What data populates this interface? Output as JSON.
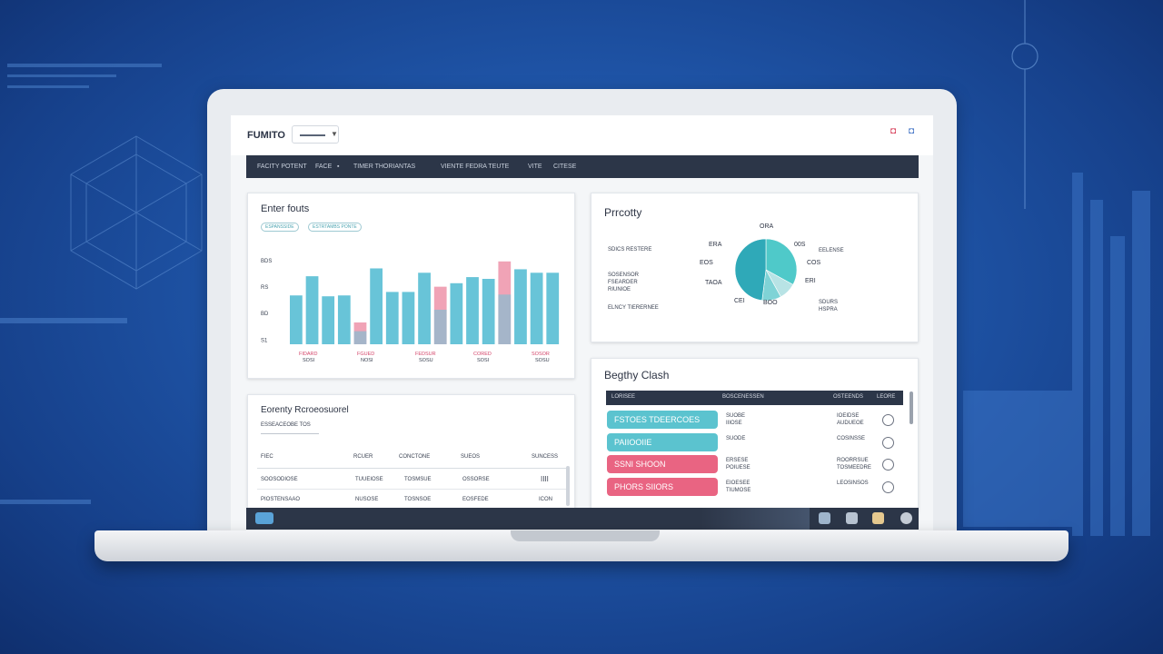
{
  "header": {
    "brand": "FUMITO"
  },
  "nav": {
    "items": [
      "FACITY POTENT",
      "FACE",
      "TIMER THORIANTAS",
      "VIENTE FEDRA TEUTE",
      "VITE",
      "CITESE"
    ]
  },
  "bar_card": {
    "title": "Enter fouts",
    "pills": [
      "ESPANSSIDE",
      "ESTRTAMBS PONTE"
    ],
    "y_ticks": [
      "BDS",
      "RS",
      "BD",
      "S1"
    ],
    "x_labels": [
      [
        "FIDARD",
        "SOSI"
      ],
      [
        "FGUED",
        "NOSI"
      ],
      [
        "FEDSUR",
        "SOSU"
      ],
      [
        "CORED",
        "SOSI"
      ],
      [
        "SOSOR",
        "SOSU"
      ]
    ],
    "bars": [
      0.56,
      0.78,
      0.55,
      0.56,
      0.25,
      0.87,
      0.6,
      0.6,
      0.82,
      0.66,
      0.7,
      0.77,
      0.75,
      0.95,
      0.86,
      0.82,
      0.82
    ],
    "highlight_bars": [
      4,
      9,
      13
    ],
    "colors": {
      "bar": "#68c4d8",
      "highlight": "#f0a3b6"
    }
  },
  "property_card": {
    "title": "Prrcotty",
    "left_labels": [
      "SDICS\nRESTERE",
      "SOSENSOR\nFSEARDER\nRIUNIOE",
      "ELNCY TIERERNEE"
    ],
    "pie_labels": [
      "ORA",
      "ERA",
      "00S",
      "EOS",
      "COS",
      "TAOA",
      "ERI",
      "CEI",
      "BOO"
    ],
    "right_labels": [
      "EELENSE",
      "SDURS\nHSPRA"
    ],
    "pie_slices": [
      0.33,
      0.09,
      0.1,
      0.48
    ],
    "pie_colors": [
      "#4fc9c9",
      "#b8e3e5",
      "#7fd3d6",
      "#2fa9b8"
    ]
  },
  "records_card": {
    "title": "Eorenty Rcroeosuorel",
    "subtitle": "ESSEACEOBE TOS",
    "columns": [
      "FIEC",
      "RCUER",
      "CONCTONE",
      "SUEOS",
      "SUNCESS"
    ],
    "rows": [
      [
        "SOOSODIOSE",
        "TUUEIOSE",
        "TOSMSUE",
        "OSSORSE",
        "IIII"
      ],
      [
        "PIOSTENSAAO",
        "NUSOSE",
        "TOSNSOE",
        "EOSFEDE",
        "ICON"
      ]
    ]
  },
  "status_card": {
    "title": "Begthy Clash",
    "columns": [
      "LORISEE",
      "BOSCENESSEN",
      "OSTEENDS",
      "LEORE"
    ],
    "rows": [
      {
        "tag": "FSTOES TDEERCOES",
        "color": "#5bc3cf",
        "mid": "SUOBE\nIIIOSE",
        "right": "IOEIDSE\nAUDUEOE",
        "checked": false
      },
      {
        "tag": "PAIIOOIIE",
        "color": "#5bc3cf",
        "mid": "SUODE",
        "right": "COSINSSE",
        "checked": false
      },
      {
        "tag": "SSNI SHOON",
        "color": "#e96482",
        "mid": "ERSESE\nPOIUESE",
        "right": "ROORRSUE\nTOSMEEDRE",
        "checked": false
      },
      {
        "tag": "PHORS SIIORS",
        "color": "#e96482",
        "mid": "EIOESEE\nTIUMOSE",
        "right": "LEOSINSOS",
        "checked": false
      }
    ]
  }
}
